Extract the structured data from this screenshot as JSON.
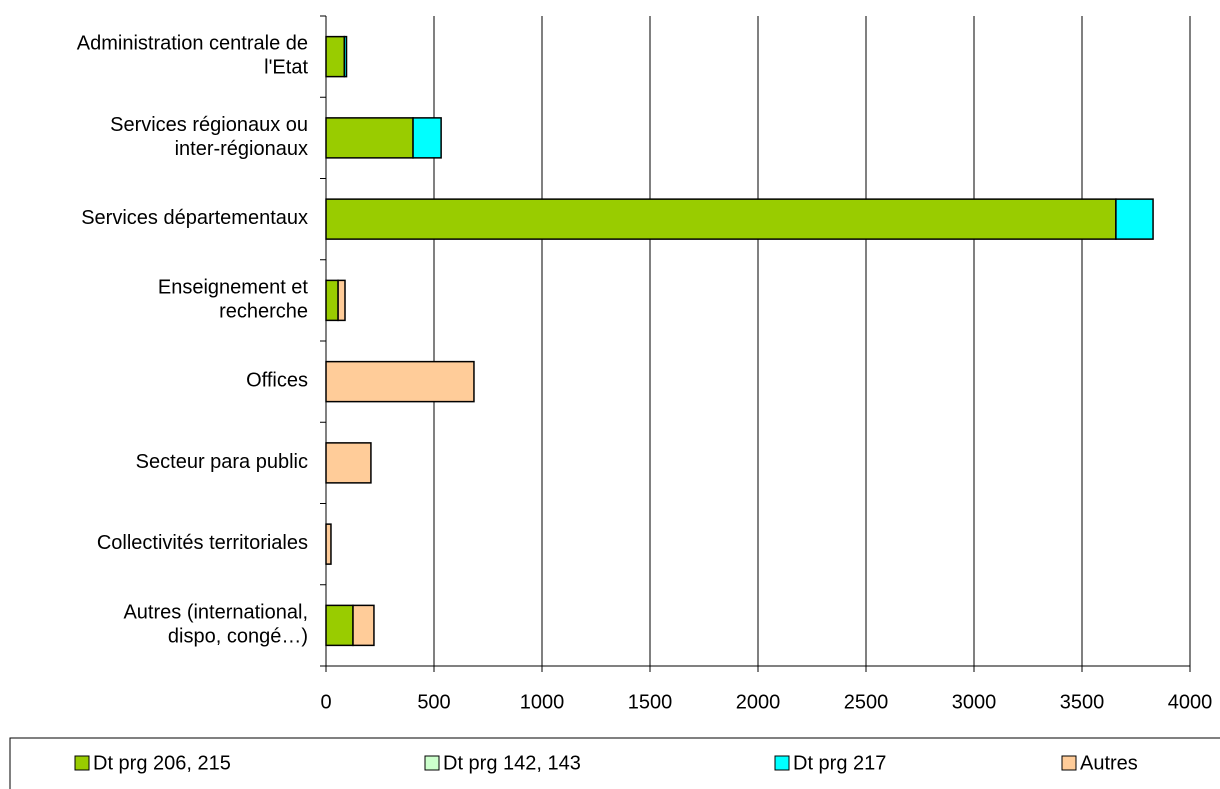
{
  "chart_data": {
    "type": "stacked-barh",
    "categories": [
      "Administration centrale de\nl'Etat",
      "Services régionaux ou\ninter-régionaux",
      "Services départementaux",
      "Enseignement et\nrecherche",
      "Offices",
      "Secteur para public",
      "Collectivités territoriales",
      "Autres (international,\ndispo, congé…)"
    ],
    "series": [
      {
        "name": "Dt prg 206, 215",
        "color": "#99cc00",
        "values": [
          85,
          403,
          3657,
          56,
          0,
          0,
          0,
          125
        ]
      },
      {
        "name": "Dt prg 142, 143",
        "color": "#ccffcc",
        "values": [
          0,
          0,
          0,
          0,
          0,
          0,
          0,
          0
        ]
      },
      {
        "name": "Dt prg 217",
        "color": "#00ffff",
        "values": [
          10,
          130,
          172,
          0,
          0,
          0,
          0,
          0
        ]
      },
      {
        "name": "Autres",
        "color": "#ffcc99",
        "values": [
          0,
          0,
          0,
          32,
          685,
          208,
          23,
          97
        ]
      }
    ],
    "xlim": [
      0,
      4000
    ],
    "xticks": [
      0,
      500,
      1000,
      1500,
      2000,
      2500,
      3000,
      3500,
      4000
    ],
    "grid": true,
    "legend": "bottom"
  }
}
